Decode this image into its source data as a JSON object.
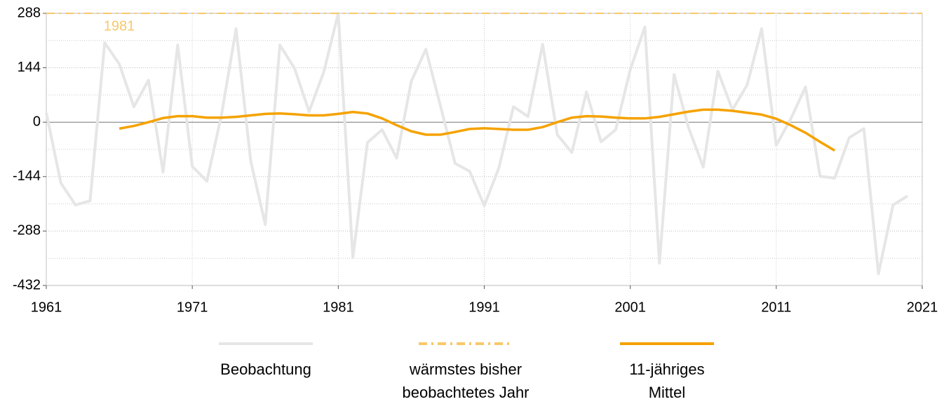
{
  "chart_data": {
    "type": "line",
    "xlim": [
      1961,
      2021
    ],
    "xticks": [
      1961,
      1971,
      1981,
      1991,
      2001,
      2011,
      2021
    ],
    "ylim": [
      -432,
      288
    ],
    "yticks": [
      288,
      144,
      0,
      -144,
      -288,
      -432
    ],
    "y_minor_ticks": [
      216,
      72,
      -72,
      -216,
      -360
    ],
    "grid": true,
    "series": [
      {
        "name": "Beobachtung",
        "color": "#e6e6e6",
        "style": "solid",
        "x": [
          1961,
          1962,
          1963,
          1964,
          1965,
          1966,
          1967,
          1968,
          1969,
          1970,
          1971,
          1972,
          1973,
          1974,
          1975,
          1976,
          1977,
          1978,
          1979,
          1980,
          1981,
          1982,
          1983,
          1984,
          1985,
          1986,
          1987,
          1988,
          1989,
          1990,
          1991,
          1992,
          1993,
          1994,
          1995,
          1996,
          1997,
          1998,
          1999,
          2000,
          2001,
          2002,
          2003,
          2004,
          2005,
          2006,
          2007,
          2008,
          2009,
          2010,
          2011,
          2012,
          2013,
          2014,
          2015,
          2016,
          2017,
          2018,
          2019,
          2020
        ],
        "values": [
          25,
          -161,
          -219,
          -208,
          210,
          154,
          41,
          111,
          -132,
          204,
          -117,
          -156,
          19,
          247,
          -102,
          -271,
          204,
          143,
          28,
          132,
          288,
          -358,
          -54,
          -20,
          -95,
          108,
          193,
          43,
          -109,
          -130,
          -221,
          -121,
          41,
          15,
          206,
          -33,
          -80,
          80,
          -52,
          -20,
          139,
          252,
          -373,
          126,
          -15,
          -119,
          135,
          33,
          98,
          247,
          -61,
          9,
          93,
          -143,
          -148,
          -41,
          -17,
          -401,
          -219,
          -195
        ]
      },
      {
        "name": "wärmstes bisher\nbeobachtetes Jahr",
        "color": "#f8c86a",
        "style": "dashdot",
        "x": [
          1961,
          2021
        ],
        "values": [
          288,
          288
        ],
        "label": "1981"
      },
      {
        "name": "11-jähriges\nMittel",
        "color": "#f5a200",
        "style": "solid",
        "x": [
          1966,
          1967,
          1968,
          1969,
          1970,
          1971,
          1972,
          1973,
          1974,
          1975,
          1976,
          1977,
          1978,
          1979,
          1980,
          1981,
          1982,
          1983,
          1984,
          1985,
          1986,
          1987,
          1988,
          1989,
          1990,
          1991,
          1992,
          1993,
          1994,
          1995,
          1996,
          1997,
          1998,
          1999,
          2000,
          2001,
          2002,
          2003,
          2004,
          2005,
          2006,
          2007,
          2008,
          2009,
          2010,
          2011,
          2012,
          2013,
          2014,
          2015
        ],
        "values": [
          -17,
          -10,
          0,
          11,
          16,
          16,
          12,
          12,
          14,
          18,
          22,
          23,
          21,
          18,
          18,
          22,
          27,
          23,
          10,
          -8,
          -24,
          -33,
          -33,
          -26,
          -18,
          -16,
          -18,
          -20,
          -20,
          -13,
          0,
          12,
          16,
          15,
          12,
          10,
          10,
          14,
          21,
          28,
          33,
          33,
          30,
          25,
          20,
          9,
          -8,
          -28,
          -52,
          -75
        ]
      }
    ]
  }
}
